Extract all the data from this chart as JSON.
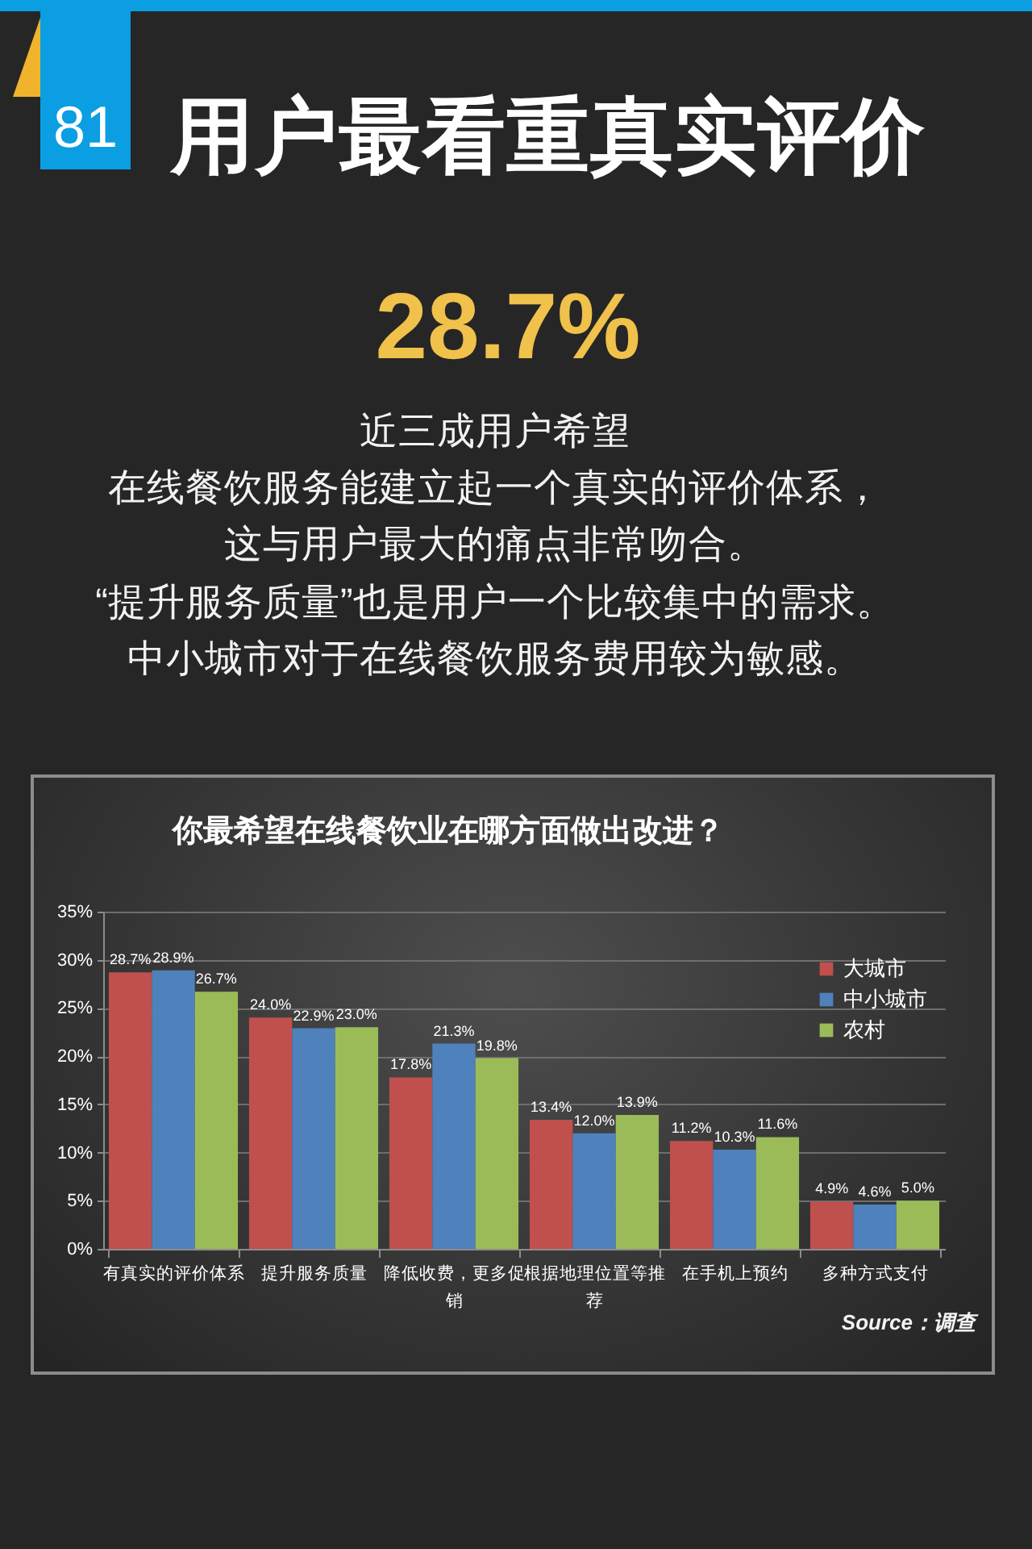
{
  "chart_data": {
    "type": "bar",
    "title": "用户最看重真实评价",
    "subtitle": "你最希望在线餐饮业在哪方面做出改进？",
    "annotations": [
      "81",
      "28.7%",
      "近三成用户希望",
      "在线餐饮服务能建立起一个真实的评价体系，",
      "这与用户最大的痛点非常吻合。",
      "“提升服务质量”也是用户一个比较集中的需求。",
      "中小城市对于在线餐饮服务费用较为敏感。",
      "Source：调查"
    ],
    "categories": [
      "有真实的评价体系",
      "提升服务质量",
      "降低收费，更多促销",
      "根据地理位置等推荐",
      "在手机上预约",
      "多种方式支付"
    ],
    "series": [
      {
        "name": "大城市",
        "color": "#c0504d",
        "values": [
          28.7,
          24.0,
          17.8,
          13.4,
          11.2,
          4.9
        ],
        "value_labels": [
          "28.7%",
          "24.0%",
          "17.8%",
          "13.4%",
          "11.2%",
          "4.9%"
        ]
      },
      {
        "name": "中小城市",
        "color": "#4f81bd",
        "values": [
          28.9,
          22.9,
          21.3,
          12.0,
          10.3,
          4.6
        ],
        "value_labels": [
          "28.9%",
          "22.9%",
          "21.3%",
          "12.0%",
          "10.3%",
          "4.6%"
        ]
      },
      {
        "name": "农村",
        "color": "#9bbb59",
        "values": [
          26.7,
          23.0,
          19.8,
          13.9,
          11.6,
          5.0
        ],
        "value_labels": [
          "26.7%",
          "23.0%",
          "19.8%",
          "13.9%",
          "11.6%",
          "5.0%"
        ]
      }
    ],
    "ylim": [
      0,
      35
    ],
    "yticks": [
      {
        "value": 0,
        "label": "0%"
      },
      {
        "value": 5,
        "label": "5%"
      },
      {
        "value": 10,
        "label": "10%"
      },
      {
        "value": 15,
        "label": "15%"
      },
      {
        "value": 20,
        "label": "20%"
      },
      {
        "value": 25,
        "label": "25%"
      },
      {
        "value": 30,
        "label": "30%"
      },
      {
        "value": 35,
        "label": "35%"
      }
    ],
    "grid": "y",
    "legend": "top right"
  }
}
